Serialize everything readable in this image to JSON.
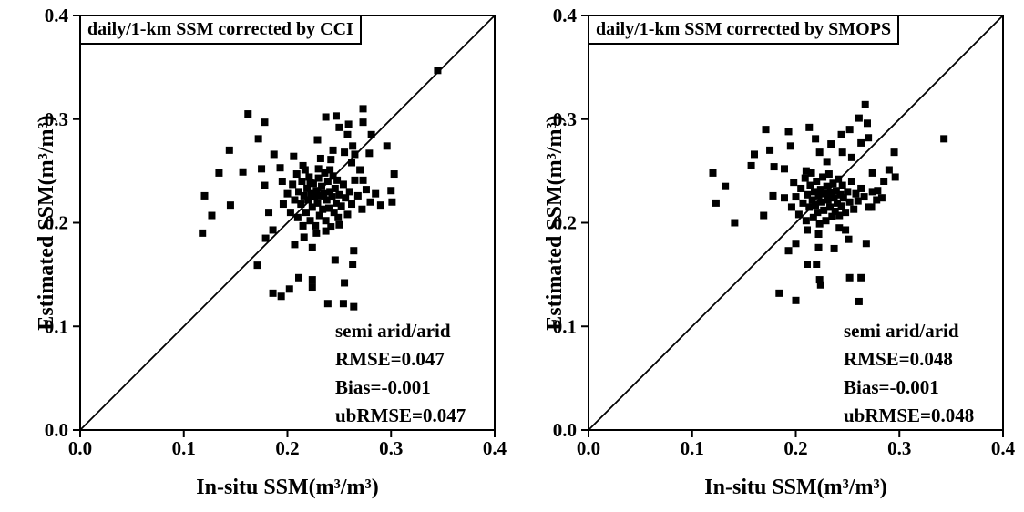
{
  "figure": {
    "background": "#ffffff",
    "axis_color": "#000000",
    "marker_color": "#000000",
    "marker_shape": "square"
  },
  "chart_data": [
    {
      "type": "scatter",
      "panel": "left",
      "title": "daily/1-km SSM corrected by CCI",
      "xlabel": "In-situ SSM(m³/m³)",
      "ylabel": "Estimated SSM(m³/m³)",
      "xlim": [
        0.0,
        0.4
      ],
      "ylim": [
        0.0,
        0.4
      ],
      "xticks": [
        "0.0",
        "0.1",
        "0.2",
        "0.3",
        "0.4"
      ],
      "yticks": [
        "0.0",
        "0.1",
        "0.2",
        "0.3",
        "0.4"
      ],
      "grid": false,
      "identity_line": true,
      "annotations": [
        "semi arid/arid",
        "RMSE=0.047",
        "Bias=-0.001",
        "ubRMSE=0.047"
      ],
      "points": [
        [
          0.162,
          0.305
        ],
        [
          0.178,
          0.297
        ],
        [
          0.172,
          0.281
        ],
        [
          0.144,
          0.27
        ],
        [
          0.187,
          0.266
        ],
        [
          0.206,
          0.264
        ],
        [
          0.229,
          0.28
        ],
        [
          0.244,
          0.27
        ],
        [
          0.215,
          0.255
        ],
        [
          0.193,
          0.253
        ],
        [
          0.175,
          0.252
        ],
        [
          0.134,
          0.248
        ],
        [
          0.157,
          0.249
        ],
        [
          0.195,
          0.24
        ],
        [
          0.178,
          0.236
        ],
        [
          0.12,
          0.226
        ],
        [
          0.145,
          0.217
        ],
        [
          0.127,
          0.207
        ],
        [
          0.182,
          0.21
        ],
        [
          0.222,
          0.239
        ],
        [
          0.23,
          0.252
        ],
        [
          0.241,
          0.251
        ],
        [
          0.242,
          0.261
        ],
        [
          0.273,
          0.31
        ],
        [
          0.273,
          0.297
        ],
        [
          0.259,
          0.295
        ],
        [
          0.281,
          0.285
        ],
        [
          0.296,
          0.274
        ],
        [
          0.263,
          0.274
        ],
        [
          0.279,
          0.267
        ],
        [
          0.265,
          0.266
        ],
        [
          0.27,
          0.251
        ],
        [
          0.273,
          0.241
        ],
        [
          0.345,
          0.347
        ],
        [
          0.247,
          0.303
        ],
        [
          0.237,
          0.302
        ],
        [
          0.25,
          0.292
        ],
        [
          0.258,
          0.285
        ],
        [
          0.232,
          0.262
        ],
        [
          0.255,
          0.268
        ],
        [
          0.262,
          0.258
        ],
        [
          0.303,
          0.247
        ],
        [
          0.301,
          0.22
        ],
        [
          0.171,
          0.159
        ],
        [
          0.246,
          0.164
        ],
        [
          0.264,
          0.173
        ],
        [
          0.263,
          0.16
        ],
        [
          0.211,
          0.147
        ],
        [
          0.224,
          0.145
        ],
        [
          0.224,
          0.138
        ],
        [
          0.202,
          0.136
        ],
        [
          0.186,
          0.132
        ],
        [
          0.194,
          0.129
        ],
        [
          0.255,
          0.142
        ],
        [
          0.239,
          0.122
        ],
        [
          0.254,
          0.122
        ],
        [
          0.264,
          0.119
        ],
        [
          0.224,
          0.176
        ],
        [
          0.118,
          0.19
        ],
        [
          0.186,
          0.193
        ],
        [
          0.179,
          0.185
        ],
        [
          0.207,
          0.179
        ],
        [
          0.216,
          0.186
        ],
        [
          0.228,
          0.19
        ],
        [
          0.237,
          0.192
        ],
        [
          0.25,
          0.198
        ],
        [
          0.196,
          0.218
        ],
        [
          0.2,
          0.228
        ],
        [
          0.203,
          0.21
        ],
        [
          0.205,
          0.237
        ],
        [
          0.207,
          0.222
        ],
        [
          0.209,
          0.247
        ],
        [
          0.21,
          0.205
        ],
        [
          0.211,
          0.23
        ],
        [
          0.213,
          0.218
        ],
        [
          0.214,
          0.24
        ],
        [
          0.215,
          0.197
        ],
        [
          0.216,
          0.226
        ],
        [
          0.217,
          0.251
        ],
        [
          0.218,
          0.21
        ],
        [
          0.219,
          0.233
        ],
        [
          0.22,
          0.222
        ],
        [
          0.221,
          0.244
        ],
        [
          0.222,
          0.202
        ],
        [
          0.223,
          0.228
        ],
        [
          0.224,
          0.215
        ],
        [
          0.225,
          0.238
        ],
        [
          0.226,
          0.225
        ],
        [
          0.227,
          0.197
        ],
        [
          0.228,
          0.231
        ],
        [
          0.229,
          0.219
        ],
        [
          0.23,
          0.243
        ],
        [
          0.231,
          0.207
        ],
        [
          0.232,
          0.226
        ],
        [
          0.233,
          0.235
        ],
        [
          0.234,
          0.213
        ],
        [
          0.235,
          0.228
        ],
        [
          0.236,
          0.248
        ],
        [
          0.237,
          0.202
        ],
        [
          0.238,
          0.222
        ],
        [
          0.239,
          0.24
        ],
        [
          0.24,
          0.214
        ],
        [
          0.241,
          0.23
        ],
        [
          0.242,
          0.196
        ],
        [
          0.243,
          0.225
        ],
        [
          0.244,
          0.245
        ],
        [
          0.245,
          0.21
        ],
        [
          0.246,
          0.233
        ],
        [
          0.247,
          0.219
        ],
        [
          0.248,
          0.241
        ],
        [
          0.249,
          0.205
        ],
        [
          0.25,
          0.227
        ],
        [
          0.252,
          0.216
        ],
        [
          0.254,
          0.237
        ],
        [
          0.256,
          0.224
        ],
        [
          0.258,
          0.208
        ],
        [
          0.26,
          0.23
        ],
        [
          0.262,
          0.218
        ],
        [
          0.265,
          0.241
        ],
        [
          0.268,
          0.226
        ],
        [
          0.272,
          0.213
        ],
        [
          0.276,
          0.232
        ],
        [
          0.28,
          0.22
        ],
        [
          0.285,
          0.228
        ],
        [
          0.29,
          0.217
        ],
        [
          0.3,
          0.231
        ]
      ]
    },
    {
      "type": "scatter",
      "panel": "right",
      "title": "daily/1-km SSM corrected by SMOPS",
      "xlabel": "In-situ SSM(m³/m³)",
      "ylabel": "Estimated SSM(m³/m³)",
      "xlim": [
        0.0,
        0.4
      ],
      "ylim": [
        0.0,
        0.4
      ],
      "xticks": [
        "0.0",
        "0.1",
        "0.2",
        "0.3",
        "0.4"
      ],
      "yticks": [
        "0.0",
        "0.1",
        "0.2",
        "0.3",
        "0.4"
      ],
      "grid": false,
      "identity_line": true,
      "annotations": [
        "semi arid/arid",
        "RMSE=0.048",
        "Bias=-0.001",
        "ubRMSE=0.048"
      ],
      "points": [
        [
          0.171,
          0.29
        ],
        [
          0.193,
          0.288
        ],
        [
          0.213,
          0.292
        ],
        [
          0.219,
          0.281
        ],
        [
          0.195,
          0.274
        ],
        [
          0.175,
          0.27
        ],
        [
          0.16,
          0.266
        ],
        [
          0.157,
          0.255
        ],
        [
          0.12,
          0.248
        ],
        [
          0.132,
          0.235
        ],
        [
          0.123,
          0.219
        ],
        [
          0.141,
          0.2
        ],
        [
          0.169,
          0.207
        ],
        [
          0.179,
          0.254
        ],
        [
          0.189,
          0.252
        ],
        [
          0.178,
          0.226
        ],
        [
          0.189,
          0.224
        ],
        [
          0.198,
          0.239
        ],
        [
          0.21,
          0.25
        ],
        [
          0.23,
          0.259
        ],
        [
          0.244,
          0.285
        ],
        [
          0.245,
          0.268
        ],
        [
          0.2,
          0.18
        ],
        [
          0.193,
          0.173
        ],
        [
          0.211,
          0.193
        ],
        [
          0.222,
          0.189
        ],
        [
          0.222,
          0.176
        ],
        [
          0.237,
          0.175
        ],
        [
          0.248,
          0.193
        ],
        [
          0.251,
          0.184
        ],
        [
          0.268,
          0.18
        ],
        [
          0.211,
          0.16
        ],
        [
          0.22,
          0.16
        ],
        [
          0.223,
          0.145
        ],
        [
          0.224,
          0.14
        ],
        [
          0.252,
          0.147
        ],
        [
          0.263,
          0.147
        ],
        [
          0.184,
          0.132
        ],
        [
          0.2,
          0.125
        ],
        [
          0.261,
          0.124
        ],
        [
          0.242,
          0.195
        ],
        [
          0.343,
          0.281
        ],
        [
          0.295,
          0.268
        ],
        [
          0.274,
          0.248
        ],
        [
          0.279,
          0.231
        ],
        [
          0.283,
          0.224
        ],
        [
          0.273,
          0.215
        ],
        [
          0.234,
          0.276
        ],
        [
          0.263,
          0.277
        ],
        [
          0.254,
          0.263
        ],
        [
          0.267,
          0.314
        ],
        [
          0.261,
          0.301
        ],
        [
          0.269,
          0.296
        ],
        [
          0.252,
          0.29
        ],
        [
          0.27,
          0.282
        ],
        [
          0.29,
          0.251
        ],
        [
          0.296,
          0.244
        ],
        [
          0.223,
          0.268
        ],
        [
          0.196,
          0.215
        ],
        [
          0.2,
          0.225
        ],
        [
          0.203,
          0.208
        ],
        [
          0.205,
          0.233
        ],
        [
          0.207,
          0.219
        ],
        [
          0.209,
          0.243
        ],
        [
          0.21,
          0.202
        ],
        [
          0.211,
          0.227
        ],
        [
          0.213,
          0.215
        ],
        [
          0.214,
          0.236
        ],
        [
          0.215,
          0.248
        ],
        [
          0.216,
          0.222
        ],
        [
          0.217,
          0.205
        ],
        [
          0.218,
          0.23
        ],
        [
          0.219,
          0.217
        ],
        [
          0.22,
          0.24
        ],
        [
          0.221,
          0.21
        ],
        [
          0.222,
          0.226
        ],
        [
          0.223,
          0.199
        ],
        [
          0.224,
          0.232
        ],
        [
          0.225,
          0.22
        ],
        [
          0.226,
          0.244
        ],
        [
          0.227,
          0.212
        ],
        [
          0.228,
          0.228
        ],
        [
          0.229,
          0.202
        ],
        [
          0.23,
          0.235
        ],
        [
          0.231,
          0.222
        ],
        [
          0.232,
          0.247
        ],
        [
          0.233,
          0.215
        ],
        [
          0.234,
          0.229
        ],
        [
          0.235,
          0.206
        ],
        [
          0.236,
          0.238
        ],
        [
          0.237,
          0.224
        ],
        [
          0.238,
          0.211
        ],
        [
          0.239,
          0.231
        ],
        [
          0.24,
          0.219
        ],
        [
          0.241,
          0.242
        ],
        [
          0.242,
          0.207
        ],
        [
          0.243,
          0.227
        ],
        [
          0.244,
          0.216
        ],
        [
          0.245,
          0.236
        ],
        [
          0.246,
          0.224
        ],
        [
          0.248,
          0.21
        ],
        [
          0.25,
          0.23
        ],
        [
          0.252,
          0.22
        ],
        [
          0.254,
          0.24
        ],
        [
          0.256,
          0.213
        ],
        [
          0.258,
          0.228
        ],
        [
          0.26,
          0.221
        ],
        [
          0.263,
          0.233
        ],
        [
          0.266,
          0.225
        ],
        [
          0.27,
          0.215
        ],
        [
          0.274,
          0.23
        ],
        [
          0.278,
          0.222
        ],
        [
          0.285,
          0.24
        ]
      ]
    }
  ]
}
